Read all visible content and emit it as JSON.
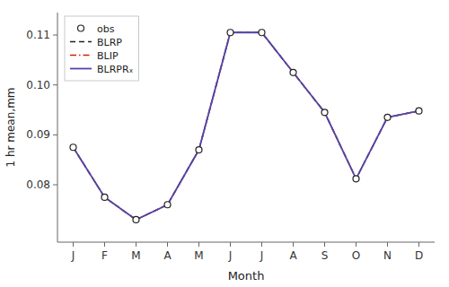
{
  "chart_data": {
    "type": "line",
    "categories": [
      "J",
      "F",
      "M",
      "A",
      "M",
      "J",
      "J",
      "A",
      "S",
      "O",
      "N",
      "D"
    ],
    "series": [
      {
        "name": "obs",
        "color": "#222222",
        "marker": "circle",
        "line_style": "none",
        "values": [
          0.0875,
          0.0775,
          0.073,
          0.076,
          0.087,
          0.1105,
          0.1105,
          0.1025,
          0.0945,
          0.0812,
          0.0935,
          0.0948
        ]
      },
      {
        "name": "BLRP",
        "color": "#222222",
        "line_style": "dashed",
        "values": [
          0.0875,
          0.0775,
          0.073,
          0.076,
          0.087,
          0.1105,
          0.1105,
          0.1025,
          0.0945,
          0.0812,
          0.0935,
          0.0948
        ]
      },
      {
        "name": "BLIP",
        "color": "#cc2200",
        "line_style": "dashdot",
        "values": [
          0.0875,
          0.0775,
          0.073,
          0.076,
          0.087,
          0.1105,
          0.1105,
          0.1025,
          0.0945,
          0.0812,
          0.0935,
          0.0948
        ]
      },
      {
        "name": "BLRPRₓ",
        "color": "#5544aa",
        "line_style": "solid",
        "values": [
          0.0875,
          0.0775,
          0.073,
          0.076,
          0.087,
          0.1105,
          0.1105,
          0.1025,
          0.0945,
          0.0812,
          0.0935,
          0.0948
        ]
      }
    ],
    "ylim": [
      0.0685,
      0.1145
    ],
    "yticks": [
      0.08,
      0.09,
      {
        "value": 0.1,
        "label": "0.10"
      },
      0.11
    ],
    "xlabel": "Month",
    "ylabel": "1 hr mean,mm",
    "grid": false,
    "legend": "upper left"
  }
}
